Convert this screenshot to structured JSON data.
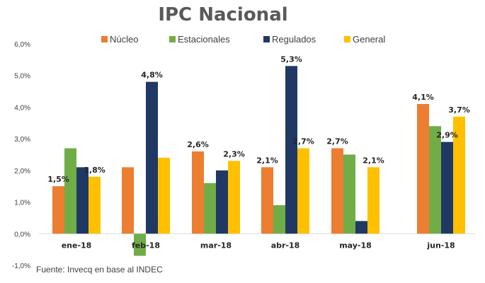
{
  "chart_data": {
    "type": "bar",
    "title": "IPC Nacional",
    "source": "Fuente: Invecq en base  al INDEC",
    "categories": [
      "ene-18",
      "feb-18",
      "mar-18",
      "abr-18",
      "may-18",
      "jun-18"
    ],
    "ylim": [
      -1.0,
      6.0
    ],
    "yticks": [
      -1.0,
      0.0,
      1.0,
      2.0,
      3.0,
      4.0,
      5.0,
      6.0
    ],
    "ytick_labels": [
      "-1,0%",
      "0,0%",
      "1,0%",
      "2,0%",
      "3,0%",
      "4,0%",
      "5,0%",
      "6,0%"
    ],
    "grid": false,
    "legend_position": "top",
    "series": [
      {
        "name": "Núcleo",
        "color": "#ED7D31",
        "values": [
          1.5,
          2.1,
          2.6,
          2.1,
          2.7,
          4.1
        ]
      },
      {
        "name": "Estacionales",
        "color": "#70AD47",
        "values": [
          2.7,
          -0.7,
          1.6,
          0.9,
          2.5,
          3.4
        ]
      },
      {
        "name": "Regulados",
        "color": "#203864",
        "values": [
          2.1,
          4.8,
          2.0,
          5.3,
          0.4,
          2.9
        ]
      },
      {
        "name": "General",
        "color": "#FFC000",
        "values": [
          1.8,
          2.4,
          2.3,
          2.7,
          2.1,
          3.7
        ]
      }
    ],
    "data_labels": [
      {
        "category": "ene-18",
        "series": "Núcleo",
        "text": "1,5%"
      },
      {
        "category": "ene-18",
        "series": "General",
        "text": "1,8%"
      },
      {
        "category": "feb-18",
        "series": "Regulados",
        "text": "4,8%"
      },
      {
        "category": "mar-18",
        "series": "Núcleo",
        "text": "2,6%"
      },
      {
        "category": "mar-18",
        "series": "General",
        "text": "2,3%"
      },
      {
        "category": "abr-18",
        "series": "Núcleo",
        "text": "2,1%"
      },
      {
        "category": "abr-18",
        "series": "Regulados",
        "text": "5,3%"
      },
      {
        "category": "abr-18",
        "series": "General",
        "text": "2,7%"
      },
      {
        "category": "may-18",
        "series": "Núcleo",
        "text": "2,7%"
      },
      {
        "category": "may-18",
        "series": "General",
        "text": "2,1%"
      },
      {
        "category": "jun-18",
        "series": "Núcleo",
        "text": "4,1%"
      },
      {
        "category": "jun-18",
        "series": "Regulados",
        "text": "2,9%"
      },
      {
        "category": "jun-18",
        "series": "General",
        "text": "3,7%"
      }
    ]
  }
}
